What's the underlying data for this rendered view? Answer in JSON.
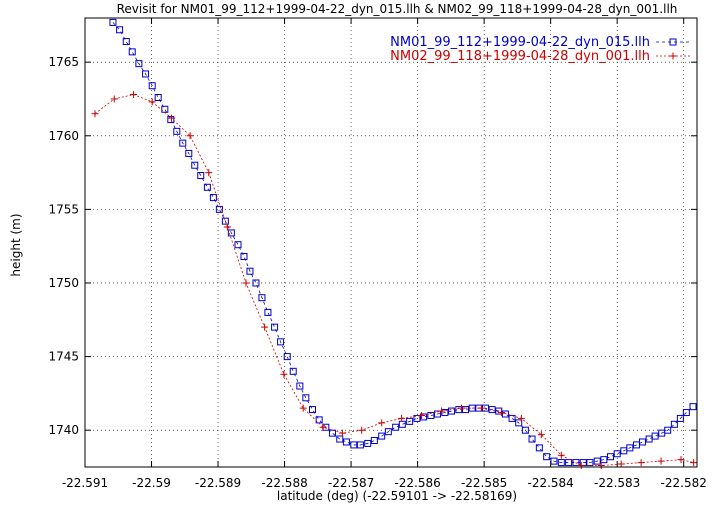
{
  "chart_data": {
    "type": "scatter",
    "title": "Revisit for NM01_99_112+1999-04-22_dyn_015.llh & NM02_99_118+1999-04-28_dyn_001.llh",
    "xlabel": "latitude (deg) (-22.59101 -> -22.58169)",
    "ylabel": "height (m)",
    "xlim": [
      -22.591,
      -22.5818
    ],
    "ylim": [
      1737.5,
      1768
    ],
    "xticks": [
      -22.591,
      -22.59,
      -22.589,
      -22.588,
      -22.587,
      -22.586,
      -22.585,
      -22.584,
      -22.583,
      -22.582
    ],
    "xtick_labels": [
      "-22.591",
      "-22.59",
      "-22.589",
      "-22.588",
      "-22.587",
      "-22.586",
      "-22.585",
      "-22.584",
      "-22.583",
      "-22.582"
    ],
    "yticks": [
      1740,
      1745,
      1750,
      1755,
      1760,
      1765
    ],
    "ytick_labels": [
      "1740",
      "1745",
      "1750",
      "1755",
      "1760",
      "1765"
    ],
    "grid": true,
    "legend_position": "top-right",
    "series": [
      {
        "name": "NM01_99_112+1999-04-22_dyn_015.llh",
        "color": "#0000cc",
        "marker": "square",
        "line": "dashed",
        "x": [
          -22.59058,
          -22.59048,
          -22.59038,
          -22.59029,
          -22.59019,
          -22.59009,
          -22.58999,
          -22.5899,
          -22.5898,
          -22.58971,
          -22.58962,
          -22.58953,
          -22.58944,
          -22.58935,
          -22.58926,
          -22.58916,
          -22.58907,
          -22.58898,
          -22.58889,
          -22.5888,
          -22.5887,
          -22.58861,
          -22.58852,
          -22.58843,
          -22.58834,
          -22.58825,
          -22.58815,
          -22.58806,
          -22.58796,
          -22.58787,
          -22.58777,
          -22.58768,
          -22.58758,
          -22.58748,
          -22.58738,
          -22.58728,
          -22.58717,
          -22.58707,
          -22.58696,
          -22.58686,
          -22.58675,
          -22.58665,
          -22.58654,
          -22.58644,
          -22.58633,
          -22.58623,
          -22.58612,
          -22.58601,
          -22.58591,
          -22.5858,
          -22.5857,
          -22.58559,
          -22.58549,
          -22.58538,
          -22.58528,
          -22.58518,
          -22.58508,
          -22.58498,
          -22.58488,
          -22.58478,
          -22.58468,
          -22.58458,
          -22.58448,
          -22.58438,
          -22.58428,
          -22.58417,
          -22.58406,
          -22.58395,
          -22.58384,
          -22.58373,
          -22.58362,
          -22.58351,
          -22.58341,
          -22.5833,
          -22.5832,
          -22.5831,
          -22.583,
          -22.5829,
          -22.58281,
          -22.58271,
          -22.58262,
          -22.58252,
          -22.58243,
          -22.58233,
          -22.58224,
          -22.58214,
          -22.58205,
          -22.58196,
          -22.58186,
          -22.58178
        ],
        "y": [
          1767.7,
          1767.2,
          1766.4,
          1765.7,
          1764.9,
          1764.2,
          1763.4,
          1762.6,
          1761.8,
          1761.1,
          1760.3,
          1759.5,
          1758.8,
          1758.0,
          1757.3,
          1756.5,
          1755.8,
          1755.0,
          1754.2,
          1753.4,
          1752.6,
          1751.8,
          1750.8,
          1750.0,
          1749.0,
          1748.0,
          1747.0,
          1746.0,
          1745.0,
          1744.0,
          1743.0,
          1742.2,
          1741.4,
          1740.7,
          1740.2,
          1739.8,
          1739.4,
          1739.2,
          1739.0,
          1739.0,
          1739.1,
          1739.3,
          1739.6,
          1739.9,
          1740.2,
          1740.4,
          1740.6,
          1740.8,
          1740.9,
          1741.0,
          1741.1,
          1741.2,
          1741.3,
          1741.4,
          1741.4,
          1741.5,
          1741.5,
          1741.5,
          1741.4,
          1741.3,
          1741.1,
          1740.8,
          1740.5,
          1740.0,
          1739.4,
          1738.8,
          1738.2,
          1737.9,
          1737.8,
          1737.8,
          1737.8,
          1737.8,
          1737.8,
          1737.9,
          1738.0,
          1738.2,
          1738.4,
          1738.6,
          1738.8,
          1739.0,
          1739.2,
          1739.4,
          1739.6,
          1739.8,
          1740.0,
          1740.4,
          1740.8,
          1741.2,
          1741.6,
          1742.0
        ]
      },
      {
        "name": "NM02_99_118+1999-04-28_dyn_001.llh",
        "color": "#cc0000",
        "marker": "plus",
        "line": "dotted",
        "x": [
          -22.59085,
          -22.59056,
          -22.59027,
          -22.58999,
          -22.5897,
          -22.58942,
          -22.58914,
          -22.58886,
          -22.58858,
          -22.5883,
          -22.58801,
          -22.58772,
          -22.58742,
          -22.58713,
          -22.58684,
          -22.58654,
          -22.58624,
          -22.58594,
          -22.58564,
          -22.58534,
          -22.58504,
          -22.58474,
          -22.58444,
          -22.58414,
          -22.58384,
          -22.58354,
          -22.58324,
          -22.58294,
          -22.58264,
          -22.58234,
          -22.58204,
          -22.58185,
          -22.58168
        ],
        "y": [
          1761.5,
          1762.5,
          1762.8,
          1762.3,
          1761.2,
          1760.0,
          1757.5,
          1753.8,
          1750.0,
          1747.0,
          1743.8,
          1741.5,
          1740.2,
          1739.8,
          1740.0,
          1740.5,
          1740.8,
          1741.0,
          1741.3,
          1741.5,
          1741.5,
          1741.2,
          1740.8,
          1739.7,
          1738.3,
          1737.6,
          1737.6,
          1737.7,
          1737.8,
          1737.9,
          1738.0,
          1737.8,
          1737.7
        ]
      }
    ]
  }
}
